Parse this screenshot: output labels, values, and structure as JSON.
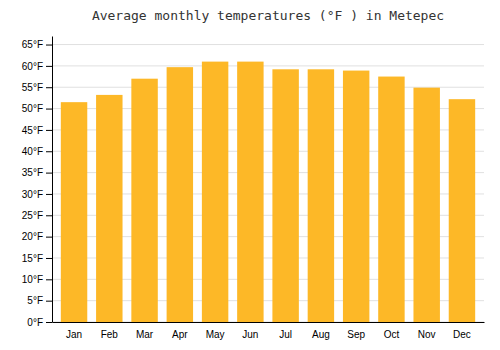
{
  "chart_data": {
    "type": "bar",
    "title": "Average monthly temperatures (°F ) in Metepec",
    "categories": [
      "Jan",
      "Feb",
      "Mar",
      "Apr",
      "May",
      "Jun",
      "Jul",
      "Aug",
      "Sep",
      "Oct",
      "Nov",
      "Dec"
    ],
    "values": [
      51.5,
      53.2,
      57.0,
      59.7,
      61.0,
      61.0,
      59.2,
      59.2,
      58.9,
      57.5,
      54.9,
      52.2
    ],
    "color": "#FDB827",
    "ylim": [
      0,
      67
    ],
    "yticks": [
      {
        "value": 0,
        "label": "0°F"
      },
      {
        "value": 5,
        "label": "5°F"
      },
      {
        "value": 10,
        "label": "10°F"
      },
      {
        "value": 15,
        "label": "15°F"
      },
      {
        "value": 20,
        "label": "20°F"
      },
      {
        "value": 25,
        "label": "25°F"
      },
      {
        "value": 30,
        "label": "30°F"
      },
      {
        "value": 35,
        "label": "35°F"
      },
      {
        "value": 40,
        "label": "40°F"
      },
      {
        "value": 45,
        "label": "45°F"
      },
      {
        "value": 50,
        "label": "50°F"
      },
      {
        "value": 55,
        "label": "55°F"
      },
      {
        "value": 60,
        "label": "60°F"
      },
      {
        "value": 65,
        "label": "65°F"
      }
    ],
    "grid": true
  }
}
